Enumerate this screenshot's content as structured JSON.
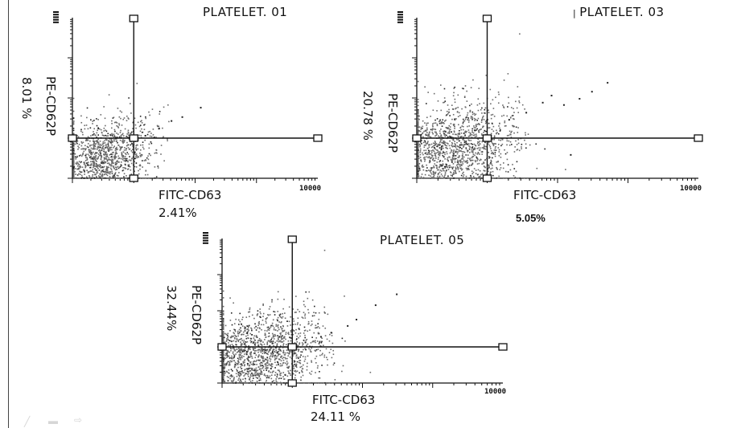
{
  "panels": [
    {
      "title": "PLATELET. 01",
      "xlabel": "FITC-CD63",
      "ylabel": "PE-CD62P",
      "upper_pct": "8.01 %",
      "right_pct": "2.41%",
      "x_max_tick": "10000"
    },
    {
      "title": "PLATELET. 03",
      "xlabel": "FITC-CD63",
      "ylabel": "PE-CD62P",
      "upper_pct": "20.78 %",
      "right_pct": "5.05%",
      "x_max_tick": "10000"
    },
    {
      "title": "PLATELET. 05",
      "xlabel": "FITC-CD63",
      "ylabel": "PE-CD62P",
      "upper_pct": "32.44%",
      "right_pct": "24.11 %",
      "x_max_tick": "10000"
    }
  ],
  "chart_data": [
    {
      "type": "scatter",
      "title": "PLATELET. 01",
      "xlabel": "FITC-CD63",
      "ylabel": "PE-CD62P",
      "x_scale": "log",
      "xlim": [
        1,
        10000
      ],
      "ylim": [
        1,
        10000
      ],
      "gate": {
        "x": 10,
        "y": 10
      },
      "quadrant_percentages": {
        "upper": 8.01,
        "right": 2.41
      },
      "cluster": {
        "center": [
          3,
          3
        ],
        "spread": 0.5,
        "events": 1300
      },
      "sparse_points": [
        [
          15,
          12
        ],
        [
          25,
          18
        ],
        [
          40,
          28
        ],
        [
          60,
          35
        ],
        [
          120,
          60
        ]
      ]
    },
    {
      "type": "scatter",
      "title": "PLATELET. 03",
      "xlabel": "FITC-CD63",
      "ylabel": "PE-CD62P",
      "x_scale": "log",
      "xlim": [
        1,
        10000
      ],
      "ylim": [
        1,
        10000
      ],
      "gate": {
        "x": 10,
        "y": 10
      },
      "quadrant_percentages": {
        "upper": 20.78,
        "right": 5.05
      },
      "cluster": {
        "center": [
          3,
          5
        ],
        "spread": 0.6,
        "events": 1700
      },
      "sparse_points": [
        [
          20,
          30
        ],
        [
          35,
          45
        ],
        [
          60,
          80
        ],
        [
          80,
          120
        ],
        [
          120,
          70
        ],
        [
          200,
          100
        ],
        [
          300,
          150
        ],
        [
          500,
          250
        ],
        [
          150,
          4
        ]
      ]
    },
    {
      "type": "scatter",
      "title": "PLATELET. 05",
      "xlabel": "FITC-CD63",
      "ylabel": "PE-CD62P",
      "x_scale": "log",
      "xlim": [
        1,
        10000
      ],
      "ylim": [
        1,
        10000
      ],
      "gate": {
        "x": 10,
        "y": 10
      },
      "quadrant_percentages": {
        "upper": 32.44,
        "right": 24.11
      },
      "cluster": {
        "center": [
          3,
          6
        ],
        "spread": 0.6,
        "events": 1800
      },
      "sparse_points": [
        [
          15,
          14
        ],
        [
          25,
          20
        ],
        [
          35,
          26
        ],
        [
          60,
          40
        ],
        [
          80,
          60
        ],
        [
          150,
          150
        ],
        [
          300,
          300
        ]
      ]
    }
  ]
}
